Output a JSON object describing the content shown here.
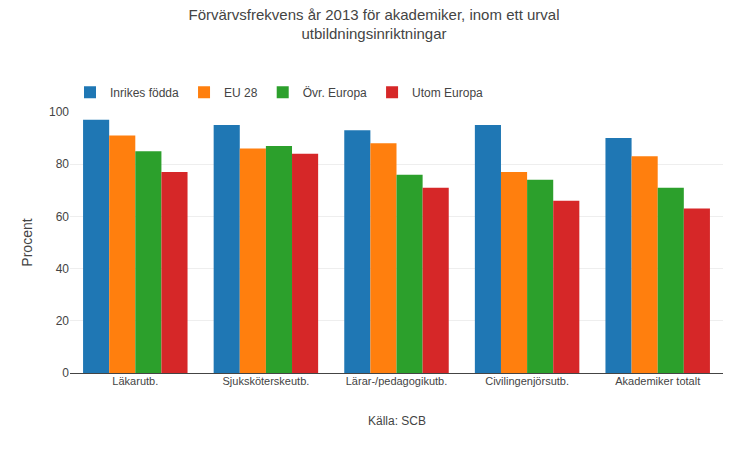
{
  "chart_data": {
    "type": "bar",
    "title": "Förvärvsfrekvens år 2013 för akademiker, inom ett urval\nutbildningsinriktningar",
    "ylabel": "Procent",
    "annotations": [
      "Källa: SCB"
    ],
    "categories": [
      "Läkarutb.",
      "Sjuksköterskeutb.",
      "Lärar-/pedagogikutb.",
      "Civilingenjörsutb.",
      "Akademiker totalt"
    ],
    "series": [
      {
        "name": "Inrikes födda",
        "values": [
          97,
          95,
          93,
          95,
          90
        ]
      },
      {
        "name": "EU 28",
        "values": [
          91,
          86,
          88,
          77,
          83
        ]
      },
      {
        "name": "Övr. Europa",
        "values": [
          85,
          87,
          76,
          74,
          71
        ]
      },
      {
        "name": "Utom Europa",
        "values": [
          77,
          84,
          71,
          66,
          63
        ]
      }
    ],
    "ylim": [
      0,
      100
    ],
    "yticks": [
      0,
      20,
      40,
      60,
      80,
      100
    ],
    "grid": true,
    "legend": "top"
  }
}
